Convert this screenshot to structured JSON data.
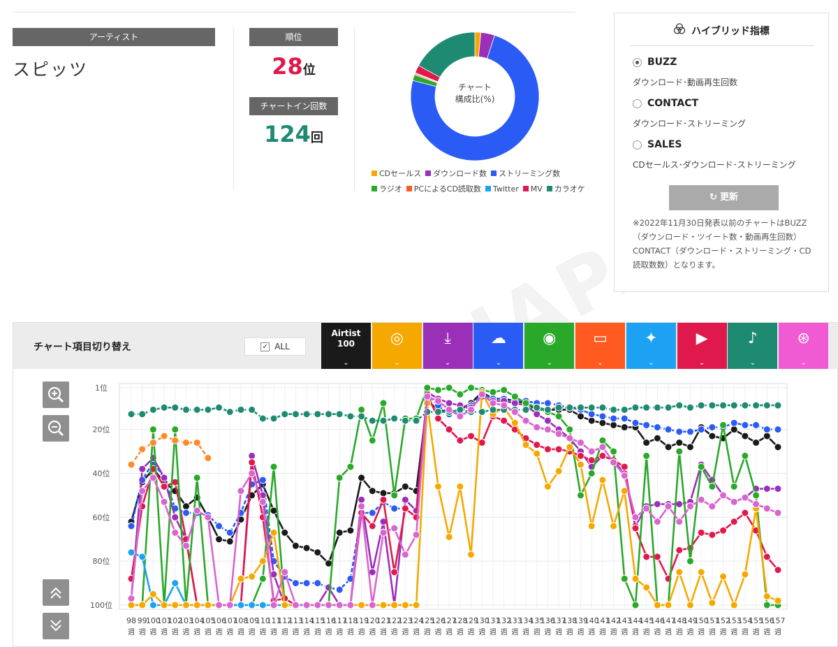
{
  "artist": {
    "label": "アーティスト",
    "name": "スピッツ"
  },
  "rank": {
    "label": "順位",
    "value": "28",
    "unit": "位"
  },
  "chartin": {
    "label": "チャートイン回数",
    "value": "124",
    "unit": "回"
  },
  "donut": {
    "center_line1": "チャート",
    "center_line2": "構成比(%)",
    "slices": [
      {
        "name": "CDセールス",
        "color": "#f5a800",
        "value": 1.5
      },
      {
        "name": "ダウンロード数",
        "color": "#9a2fb8",
        "value": 3.5
      },
      {
        "name": "ストリーミング数",
        "color": "#2b5bf5",
        "value": 74
      },
      {
        "name": "ラジオ",
        "color": "#2aa82a",
        "value": 1.5
      },
      {
        "name": "PCによるCD読取数",
        "color": "#ff5a1f",
        "value": 0.3
      },
      {
        "name": "Twitter",
        "color": "#1da1f2",
        "value": 0.2
      },
      {
        "name": "MV",
        "color": "#e0194d",
        "value": 2
      },
      {
        "name": "カラオケ",
        "color": "#1e8a72",
        "value": 17
      }
    ]
  },
  "legend": {
    "row1": [
      {
        "label": "CDセールス",
        "color": "#f5a800"
      },
      {
        "label": "ダウンロード数",
        "color": "#9a2fb8"
      },
      {
        "label": "ストリーミング数",
        "color": "#2b5bf5"
      }
    ],
    "row2": [
      {
        "label": "ラジオ",
        "color": "#2aa82a"
      },
      {
        "label": "PCによるCD読取数",
        "color": "#ff5a1f"
      },
      {
        "label": "Twitter",
        "color": "#1da1f2"
      },
      {
        "label": "MV",
        "color": "#e0194d"
      },
      {
        "label": "カラオケ",
        "color": "#1e8a72"
      }
    ]
  },
  "hybrid": {
    "title": "ハイブリッド指標",
    "options": [
      {
        "label": "BUZZ",
        "desc": "ダウンロード･動画再生回数",
        "selected": true
      },
      {
        "label": "CONTACT",
        "desc": "ダウンロード･ストリーミング",
        "selected": false
      },
      {
        "label": "SALES",
        "desc": "CDセールス･ダウンロード･ストリーミング",
        "selected": false
      }
    ],
    "refresh_label": "更新",
    "note": "※2022年11月30日発表以前のチャートはBUZZ（ダウンロード・ツイート数・動画再生回数）CONTACT（ダウンロード・ストリーミング・CD読取数数）となります。"
  },
  "watermark": "JAPAN",
  "chart_panel": {
    "title": "チャート項目切り替え",
    "all_label": "ALL",
    "categories": [
      {
        "id": "airtist",
        "line1": "Airtist",
        "line2": "100",
        "color": "#1a1a1a",
        "icon": ""
      },
      {
        "id": "cd",
        "icon": "disc-icon",
        "glyph": "◎",
        "color": "#f5a800"
      },
      {
        "id": "download",
        "icon": "download-icon",
        "glyph": "⤓",
        "color": "#9a2fb8"
      },
      {
        "id": "streaming",
        "icon": "cloud-music-icon",
        "glyph": "☁",
        "color": "#2b5bf5"
      },
      {
        "id": "radio",
        "icon": "radio-icon",
        "glyph": "◉",
        "color": "#2aa82a"
      },
      {
        "id": "pc",
        "icon": "pc-disc-icon",
        "glyph": "▭",
        "color": "#ff5a1f"
      },
      {
        "id": "twitter",
        "icon": "twitter-icon",
        "glyph": "✦",
        "color": "#1da1f2"
      },
      {
        "id": "mv",
        "icon": "play-icon",
        "glyph": "▶",
        "color": "#e0194d"
      },
      {
        "id": "karaoke",
        "icon": "microphone-icon",
        "glyph": "♪",
        "color": "#1e8a72"
      },
      {
        "id": "hybrid",
        "icon": "hybrid-icon",
        "glyph": "⊛",
        "color": "#f05ad2"
      }
    ],
    "chevron": "⌄"
  },
  "controls": {
    "zoom_in": "zoom-in-icon",
    "zoom_out": "zoom-out-icon",
    "scroll_up": "chevrons-up-icon",
    "scroll_down": "chevrons-down-icon"
  },
  "chart_data": {
    "type": "line",
    "y_inverted": true,
    "ylim": [
      100,
      1
    ],
    "y_ticks": [
      "1位",
      "20位",
      "40位",
      "60位",
      "80位",
      "100位"
    ],
    "y_tick_values": [
      1,
      20,
      40,
      60,
      80,
      100
    ],
    "x_suffix": "週",
    "x": [
      98,
      99,
      100,
      101,
      102,
      103,
      104,
      105,
      106,
      107,
      108,
      109,
      110,
      111,
      112,
      113,
      114,
      115,
      116,
      117,
      118,
      119,
      120,
      121,
      122,
      123,
      124,
      125,
      126,
      127,
      128,
      129,
      130,
      131,
      132,
      133,
      134,
      135,
      136,
      137,
      138,
      139,
      140,
      141,
      142,
      143,
      144,
      145,
      146,
      147,
      148,
      149,
      150,
      151,
      152,
      153,
      154,
      155,
      156,
      157
    ],
    "series": [
      {
        "name": "Airtist 100",
        "color": "#1a1a1a",
        "dashed": false,
        "values": [
          62,
          44,
          38,
          44,
          48,
          55,
          51,
          60,
          70,
          71,
          61,
          50,
          45,
          57,
          67,
          73,
          74,
          76,
          81,
          67,
          66,
          42,
          48,
          49,
          49,
          46,
          48,
          7,
          11,
          12,
          11,
          8,
          3,
          6,
          6,
          7,
          8,
          11,
          11,
          11,
          11,
          14,
          16,
          17,
          18,
          19,
          19,
          26,
          24,
          28,
          26,
          28,
          19,
          23,
          24,
          20,
          23,
          26,
          23,
          28
        ]
      },
      {
        "name": "ストリーミング数",
        "color": "#2b5bf5",
        "dashed": true,
        "values": [
          64,
          43,
          35,
          42,
          56,
          58,
          58,
          59,
          64,
          67,
          58,
          45,
          43,
          80,
          87,
          90,
          90,
          90,
          92,
          93,
          88,
          58,
          58,
          53,
          56,
          56,
          60,
          4,
          9,
          13,
          12,
          9,
          4,
          6,
          6,
          7,
          7,
          8,
          8,
          9,
          10,
          11,
          13,
          14,
          15,
          15,
          17,
          18,
          19,
          20,
          21,
          21,
          20,
          19,
          19,
          17,
          18,
          18,
          20,
          20
        ]
      },
      {
        "name": "ダウンロード数",
        "color": "#9a2fb8",
        "dashed": false,
        "values": [
          97,
          38,
          33,
          42,
          60,
          70,
          100,
          100,
          100,
          100,
          100,
          32,
          50,
          86,
          100,
          100,
          100,
          100,
          92,
          100,
          100,
          52,
          85,
          62,
          100,
          52,
          57,
          3,
          6,
          8,
          9,
          10,
          5,
          7,
          7,
          8,
          9,
          13,
          16,
          20,
          24,
          30,
          37,
          32,
          34,
          40,
          64,
          55,
          54,
          54,
          54,
          53,
          36,
          43,
          50,
          53,
          51,
          47,
          47,
          47
        ]
      },
      {
        "name": "MV",
        "color": "#e0194d",
        "dashed": false,
        "values": [
          88,
          55,
          38,
          46,
          44,
          70,
          100,
          100,
          100,
          100,
          100,
          35,
          60,
          98,
          97,
          100,
          100,
          100,
          100,
          100,
          100,
          58,
          64,
          52,
          85,
          56,
          60,
          4,
          15,
          20,
          25,
          23,
          26,
          14,
          16,
          20,
          24,
          27,
          29,
          29,
          30,
          32,
          34,
          32,
          34,
          37,
          65,
          78,
          78,
          88,
          75,
          74,
          67,
          68,
          66,
          62,
          58,
          66,
          78,
          84
        ]
      },
      {
        "name": "ラジオ",
        "color": "#2aa82a",
        "dashed": false,
        "values": [
          100,
          100,
          20,
          100,
          20,
          100,
          42,
          100,
          100,
          100,
          100,
          100,
          88,
          37,
          100,
          100,
          100,
          100,
          100,
          42,
          37,
          11,
          25,
          8,
          50,
          15,
          15,
          1,
          2,
          1,
          4,
          1,
          2,
          3,
          2,
          5,
          8,
          10,
          12,
          14,
          20,
          50,
          40,
          25,
          30,
          88,
          100,
          32,
          100,
          100,
          30,
          80,
          37,
          46,
          18,
          46,
          32,
          50,
          100,
          100
        ]
      },
      {
        "name": "Twitter",
        "color": "#1da1f2",
        "dashed": false,
        "values": [
          76,
          78,
          100,
          100,
          90,
          100,
          100,
          100,
          100,
          100,
          100,
          100,
          100,
          100,
          100,
          100,
          100,
          100,
          100,
          100,
          100,
          100,
          100,
          100,
          100,
          100,
          100,
          null,
          null,
          null,
          null,
          null,
          null,
          null,
          null,
          null,
          null,
          null,
          null,
          null,
          null,
          null,
          null,
          null,
          null,
          null,
          null,
          null,
          null,
          null,
          null,
          null,
          null,
          null,
          null,
          null,
          null,
          null,
          null,
          null
        ]
      },
      {
        "name": "CDセールス",
        "color": "#f5a800",
        "dashed": false,
        "values": [
          100,
          100,
          95,
          100,
          100,
          100,
          100,
          100,
          100,
          100,
          88,
          87,
          80,
          67,
          100,
          100,
          100,
          100,
          100,
          100,
          100,
          100,
          100,
          100,
          100,
          100,
          100,
          8,
          46,
          69,
          46,
          77,
          3,
          13,
          10,
          17,
          27,
          31,
          46,
          39,
          28,
          36,
          64,
          43,
          64,
          48,
          88,
          92,
          100,
          100,
          85,
          100,
          85,
          99,
          87,
          100,
          86,
          56,
          96,
          98
        ]
      },
      {
        "name": "カラオケ",
        "color": "#1e8a72",
        "dashed": true,
        "values": [
          13,
          13,
          11,
          10,
          10,
          11,
          11,
          11,
          10,
          12,
          11,
          11,
          15,
          15,
          13,
          13,
          13,
          13,
          13,
          13,
          14,
          14,
          16,
          16,
          15,
          16,
          16,
          12,
          12,
          12,
          11,
          12,
          12,
          11,
          11,
          11,
          11,
          10,
          11,
          10,
          10,
          10,
          10,
          10,
          11,
          11,
          10,
          10,
          10,
          10,
          9,
          10,
          9,
          9,
          9,
          9,
          9,
          9,
          9,
          9
        ]
      },
      {
        "name": "PCによるCD読取数",
        "color": "#ff8a2a",
        "dashed": true,
        "values": [
          36,
          29,
          26,
          23,
          25,
          26,
          26,
          33,
          null,
          null,
          null,
          null,
          null,
          null,
          null,
          null,
          null,
          null,
          null,
          null,
          null,
          null,
          null,
          null,
          null,
          null,
          null,
          null,
          null,
          null,
          null,
          null,
          null,
          null,
          null,
          null,
          null,
          null,
          null,
          null,
          null,
          null,
          null,
          null,
          null,
          null,
          null,
          null,
          null,
          null,
          null,
          null,
          null,
          null,
          null,
          null,
          null,
          null,
          null,
          null
        ]
      },
      {
        "name": "ハイブリッド",
        "color": "#d865d0",
        "dashed": false,
        "values": [
          97,
          48,
          42,
          53,
          67,
          73,
          57,
          60,
          100,
          100,
          48,
          40,
          53,
          100,
          85,
          100,
          100,
          100,
          100,
          100,
          100,
          55,
          100,
          67,
          65,
          77,
          68,
          5,
          7,
          11,
          14,
          11,
          4,
          8,
          9,
          12,
          16,
          19,
          20,
          22,
          24,
          26,
          30,
          28,
          35,
          41,
          60,
          56,
          62,
          55,
          62,
          55,
          52,
          55,
          50,
          53,
          51,
          54,
          56,
          58
        ]
      }
    ]
  }
}
